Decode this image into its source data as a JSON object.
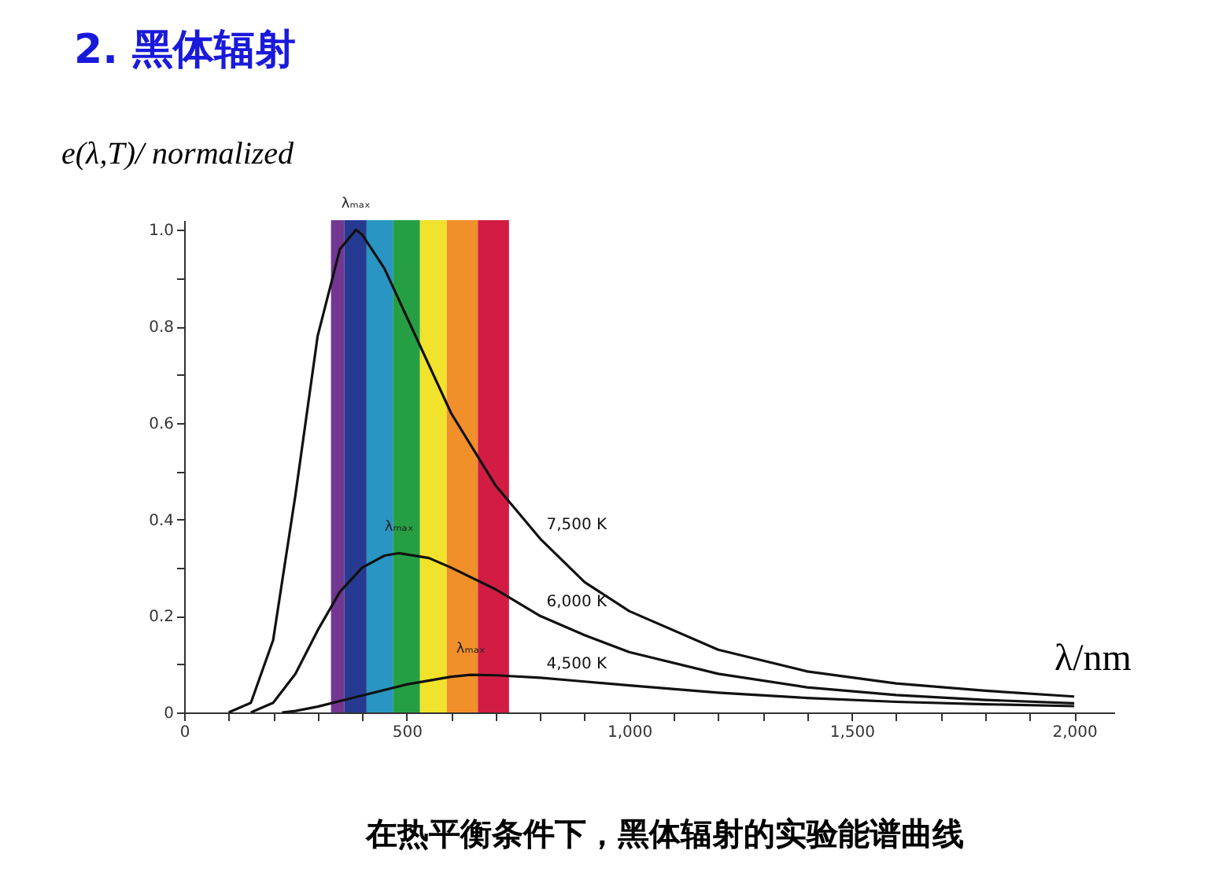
{
  "chart_data": {
    "type": "line",
    "title": "2. 黑体辐射",
    "ylabel": "e(λ,T)/ normalized",
    "xlabel": "λ/nm",
    "annotations": [
      "在热平衡条件下，黑体辐射的实验能谱曲线",
      {
        "text": "λₘₐₓ",
        "x": 386,
        "y": 1.0
      },
      {
        "text": "λₘₐₓ",
        "x": 483,
        "y": 0.33
      },
      {
        "text": "λₘₐₓ",
        "x": 644,
        "y": 0.078
      }
    ],
    "xlim": [
      0,
      2090
    ],
    "ylim": [
      0,
      1.02
    ],
    "xticks": [
      0,
      {
        "value": 100,
        "label": null
      },
      {
        "value": 200,
        "label": null
      },
      {
        "value": 300,
        "label": null
      },
      {
        "value": 400,
        "label": null
      },
      500,
      {
        "value": 600,
        "label": null
      },
      {
        "value": 700,
        "label": null
      },
      {
        "value": 800,
        "label": null
      },
      {
        "value": 900,
        "label": null
      },
      {
        "value": 1000,
        "label": "1,000"
      },
      {
        "value": 1100,
        "label": null
      },
      {
        "value": 1200,
        "label": null
      },
      {
        "value": 1300,
        "label": null
      },
      {
        "value": 1400,
        "label": null
      },
      {
        "value": 1500,
        "label": "1,500"
      },
      {
        "value": 1600,
        "label": null
      },
      {
        "value": 1700,
        "label": null
      },
      {
        "value": 1800,
        "label": null
      },
      {
        "value": 1900,
        "label": null
      },
      {
        "value": 2000,
        "label": "2,000"
      }
    ],
    "yticks": [
      0,
      {
        "value": 0.1,
        "label": null
      },
      0.2,
      {
        "value": 0.3,
        "label": null
      },
      0.4,
      {
        "value": 0.5,
        "label": null
      },
      0.6,
      {
        "value": 0.7,
        "label": null
      },
      0.8,
      {
        "value": 0.9,
        "label": null
      },
      {
        "value": 1.0,
        "label": "1.0"
      }
    ],
    "grid": false,
    "marker": "none",
    "line_style": "solid",
    "bands": [
      {
        "axis": "x",
        "from": 330,
        "to": 360,
        "color": "#6a2c8a"
      },
      {
        "axis": "x",
        "from": 360,
        "to": 410,
        "color": "#1b2f8c"
      },
      {
        "axis": "x",
        "from": 410,
        "to": 470,
        "color": "#1e8fc0"
      },
      {
        "axis": "x",
        "from": 470,
        "to": 530,
        "color": "#1a9a3a"
      },
      {
        "axis": "x",
        "from": 530,
        "to": 590,
        "color": "#f0e020"
      },
      {
        "axis": "x",
        "from": 590,
        "to": 660,
        "color": "#f08a20"
      },
      {
        "axis": "x",
        "from": 660,
        "to": 730,
        "color": "#d0103a"
      }
    ],
    "series": [
      {
        "name": "7,500 K",
        "color": "#111111",
        "x": [
          100,
          150,
          200,
          250,
          300,
          350,
          386,
          400,
          450,
          500,
          600,
          700,
          800,
          900,
          1000,
          1200,
          1400,
          1600,
          1800,
          2000
        ],
        "values": [
          0,
          0.02,
          0.15,
          0.45,
          0.78,
          0.96,
          1.0,
          0.99,
          0.92,
          0.82,
          0.62,
          0.47,
          0.36,
          0.27,
          0.21,
          0.13,
          0.085,
          0.06,
          0.045,
          0.033
        ]
      },
      {
        "name": "6,000 K",
        "color": "#111111",
        "x": [
          150,
          200,
          250,
          300,
          350,
          400,
          450,
          483,
          550,
          600,
          700,
          800,
          900,
          1000,
          1200,
          1400,
          1600,
          1800,
          2000
        ],
        "values": [
          0,
          0.02,
          0.08,
          0.17,
          0.25,
          0.3,
          0.325,
          0.33,
          0.32,
          0.3,
          0.255,
          0.2,
          0.16,
          0.125,
          0.08,
          0.052,
          0.036,
          0.026,
          0.019
        ]
      },
      {
        "name": "4,500 K",
        "color": "#111111",
        "x": [
          220,
          250,
          300,
          400,
          500,
          600,
          644,
          700,
          800,
          900,
          1000,
          1200,
          1400,
          1600,
          1800,
          2000
        ],
        "values": [
          0,
          0.003,
          0.012,
          0.035,
          0.058,
          0.074,
          0.078,
          0.077,
          0.072,
          0.064,
          0.056,
          0.041,
          0.03,
          0.022,
          0.017,
          0.013
        ]
      }
    ]
  }
}
